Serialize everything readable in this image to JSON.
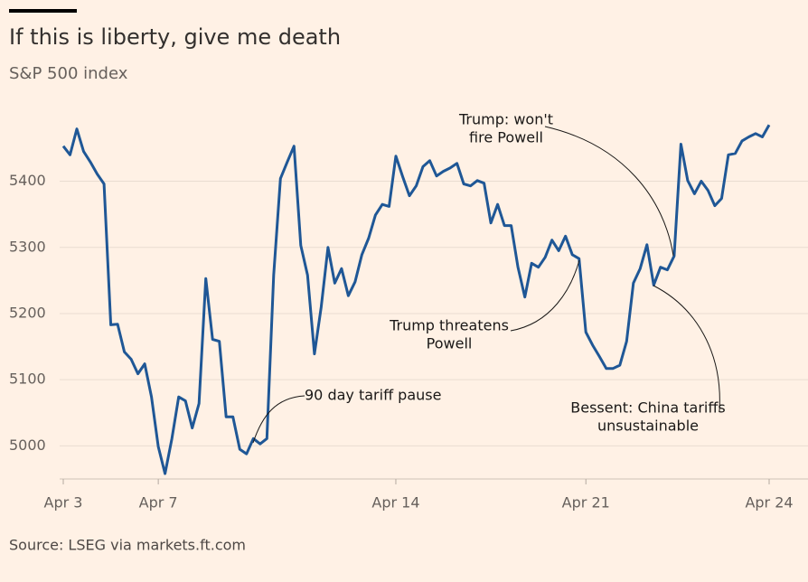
{
  "chart_data": {
    "type": "line",
    "title": "If this is liberty, give me death",
    "subtitle": "S&P 500 index",
    "source": "Source: LSEG via markets.ft.com",
    "categories": [
      "Apr 3",
      null,
      null,
      null,
      null,
      null,
      null,
      null,
      null,
      null,
      null,
      null,
      null,
      null,
      "Apr 7",
      null,
      null,
      null,
      null,
      null,
      null,
      null,
      null,
      null,
      null,
      null,
      null,
      null,
      null,
      null,
      null,
      null,
      null,
      null,
      null,
      null,
      null,
      null,
      null,
      null,
      null,
      null,
      null,
      null,
      null,
      null,
      null,
      null,
      null,
      "Apr 14",
      null,
      null,
      null,
      null,
      null,
      null,
      null,
      null,
      null,
      null,
      null,
      null,
      null,
      null,
      null,
      null,
      null,
      null,
      null,
      null,
      null,
      null,
      null,
      null,
      null,
      null,
      null,
      "Apr 21",
      null,
      null,
      null,
      null,
      null,
      null,
      null,
      null,
      null,
      null,
      null,
      null,
      null,
      null,
      null,
      null,
      null,
      null,
      null,
      null,
      null,
      null,
      null,
      null,
      null,
      null,
      "Apr 24"
    ],
    "series": [
      {
        "name": "S&P 500",
        "color": "#1f5796",
        "values": [
          5453,
          5440,
          5479,
          5445,
          5429,
          5411,
          5396,
          5183,
          5184,
          5142,
          5131,
          5109,
          5124,
          5074,
          4999,
          4958,
          5011,
          5074,
          5068,
          5027,
          5064,
          5253,
          5161,
          5158,
          5044,
          5044,
          4995,
          4988,
          5011,
          5003,
          5011,
          5258,
          5404,
          5429,
          5453,
          5303,
          5258,
          5139,
          5210,
          5300,
          5246,
          5268,
          5227,
          5248,
          5289,
          5314,
          5349,
          5365,
          5362,
          5438,
          5407,
          5378,
          5393,
          5422,
          5431,
          5408,
          5415,
          5420,
          5427,
          5396,
          5393,
          5401,
          5397,
          5337,
          5365,
          5333,
          5333,
          5270,
          5225,
          5276,
          5270,
          5285,
          5311,
          5295,
          5317,
          5289,
          5283,
          5172,
          5152,
          5135,
          5117,
          5117,
          5122,
          5158,
          5246,
          5268,
          5304,
          5243,
          5270,
          5266,
          5287,
          5456,
          5401,
          5381,
          5400,
          5386,
          5363,
          5374,
          5440,
          5442,
          5461,
          5467,
          5472,
          5467,
          5485
        ]
      }
    ],
    "ylim": [
      4950,
      5510
    ],
    "yticks": [
      5000,
      5100,
      5200,
      5300,
      5400
    ],
    "grid": true,
    "annotations": [
      [
        "90 day tariff pause"
      ],
      [
        "Trump threatens",
        "Powell"
      ],
      [
        "Trump: won't",
        "fire Powell"
      ],
      [
        "Bessent: China tariffs",
        "unsustainable"
      ]
    ]
  }
}
